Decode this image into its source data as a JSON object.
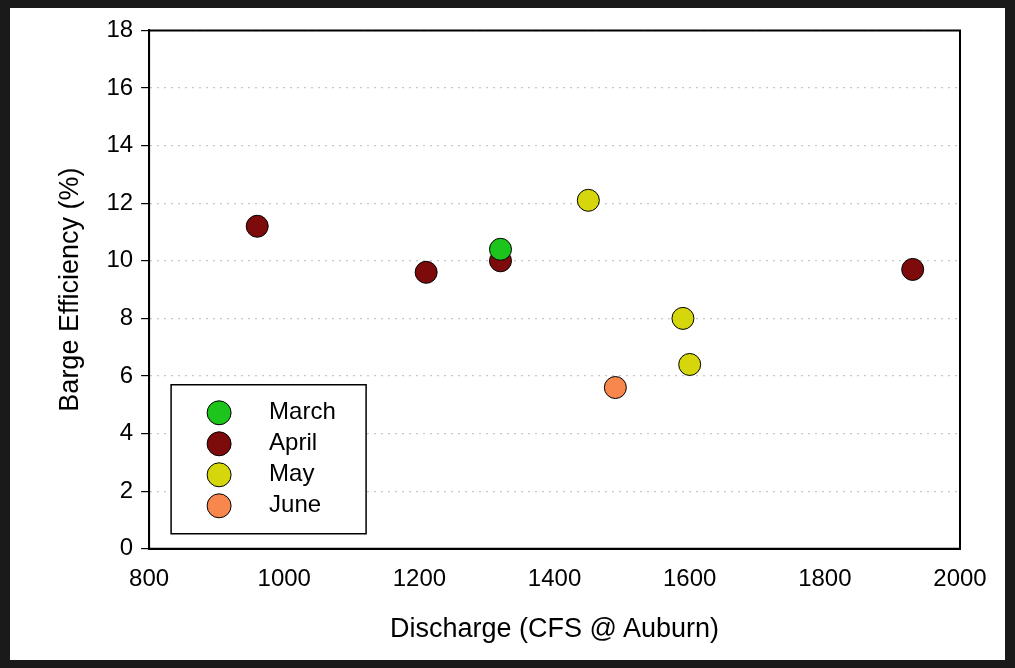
{
  "chart_data": {
    "type": "scatter",
    "xlabel": "Discharge (CFS @ Auburn)",
    "ylabel": "Barge Efficiency (%)",
    "xlim": [
      800,
      2000
    ],
    "xticks": [
      800,
      1000,
      1200,
      1400,
      1600,
      1800,
      2000
    ],
    "ylim": [
      0,
      18
    ],
    "yticks": [
      0,
      2,
      4,
      6,
      8,
      10,
      12,
      14,
      16,
      18
    ],
    "grid": "y",
    "legend": "bottom left",
    "marker": "circle",
    "series": [
      {
        "name": "March",
        "color": "#1cc41c",
        "x": [
          1320
        ],
        "values": [
          10.4
        ]
      },
      {
        "name": "April",
        "color": "#7d0b0b",
        "x": [
          960,
          1210,
          1320,
          1930
        ],
        "values": [
          11.2,
          9.6,
          10.0,
          9.7
        ]
      },
      {
        "name": "May",
        "color": "#d6d60c",
        "x": [
          1450,
          1590,
          1600
        ],
        "values": [
          12.1,
          8.0,
          6.4
        ]
      },
      {
        "name": "June",
        "color": "#f7874c",
        "x": [
          1490
        ],
        "values": [
          5.6
        ]
      }
    ]
  }
}
